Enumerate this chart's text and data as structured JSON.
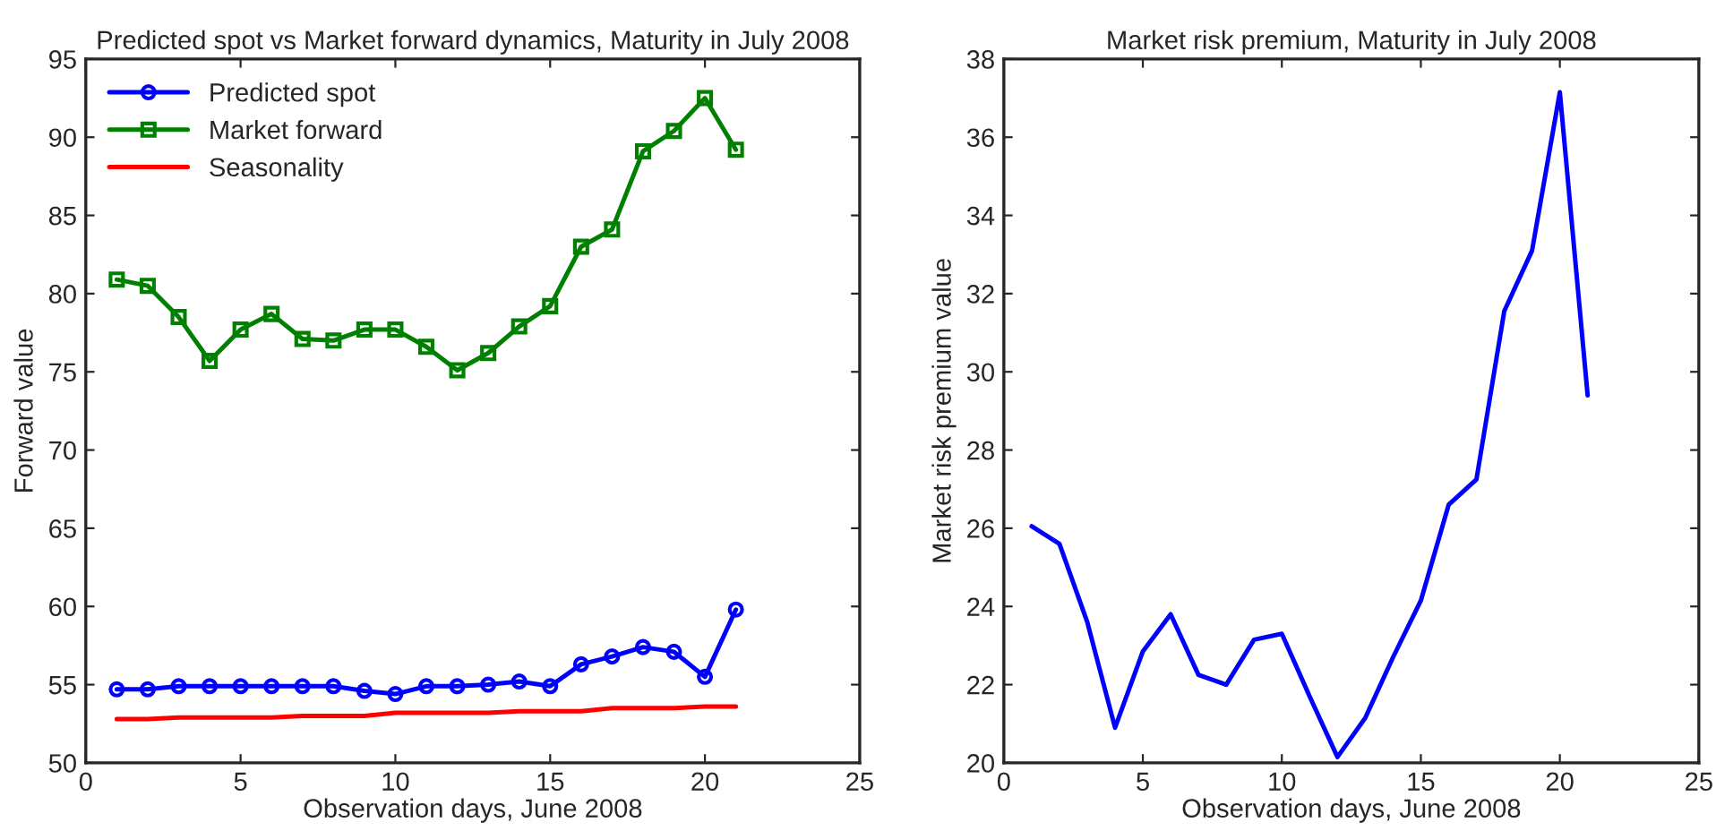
{
  "chart_data": [
    {
      "type": "line",
      "title": "Predicted spot vs Market forward dynamics, Maturity in July 2008",
      "xlabel": "Observation days, June 2008",
      "ylabel": "Forward value",
      "x": [
        1,
        2,
        3,
        4,
        5,
        6,
        7,
        8,
        9,
        10,
        11,
        12,
        13,
        14,
        15,
        16,
        17,
        18,
        19,
        20,
        21
      ],
      "series": [
        {
          "name": "Predicted spot",
          "color": "#0000ff",
          "marker": "circle",
          "values": [
            54.7,
            54.7,
            54.9,
            54.9,
            54.9,
            54.9,
            54.9,
            54.9,
            54.6,
            54.4,
            54.9,
            54.9,
            55.0,
            55.2,
            54.9,
            56.3,
            56.8,
            57.4,
            57.1,
            55.5,
            59.8
          ]
        },
        {
          "name": "Market forward",
          "color": "#008000",
          "marker": "square",
          "values": [
            80.9,
            80.5,
            78.5,
            75.7,
            77.7,
            78.7,
            77.1,
            77.0,
            77.7,
            77.7,
            76.6,
            75.1,
            76.2,
            77.9,
            79.2,
            83.0,
            84.1,
            89.1,
            90.4,
            92.5,
            89.2
          ]
        },
        {
          "name": "Seasonality",
          "color": "#ff0000",
          "marker": "none",
          "values": [
            52.8,
            52.8,
            52.9,
            52.9,
            52.9,
            52.9,
            53.0,
            53.0,
            53.0,
            53.2,
            53.2,
            53.2,
            53.2,
            53.3,
            53.3,
            53.3,
            53.5,
            53.5,
            53.5,
            53.6,
            53.6
          ]
        }
      ],
      "xlim": [
        0,
        25
      ],
      "xticks": [
        0,
        5,
        10,
        15,
        20,
        25
      ],
      "ylim": [
        50,
        95
      ],
      "yticks": [
        50,
        55,
        60,
        65,
        70,
        75,
        80,
        85,
        90,
        95
      ],
      "legend": "top left",
      "grid": false
    },
    {
      "type": "line",
      "title": "Market risk premium, Maturity in July 2008",
      "xlabel": "Observation days, June 2008",
      "ylabel": "Market risk premium value",
      "x": [
        1,
        2,
        3,
        4,
        5,
        6,
        7,
        8,
        9,
        10,
        11,
        12,
        13,
        14,
        15,
        16,
        17,
        18,
        19,
        20,
        21
      ],
      "series": [
        {
          "color": "#0000ff",
          "values": [
            26.05,
            25.6,
            23.6,
            20.9,
            22.85,
            23.8,
            22.25,
            22.0,
            23.15,
            23.3,
            21.7,
            20.15,
            21.15,
            22.7,
            24.15,
            26.6,
            27.25,
            31.55,
            33.1,
            37.15,
            29.4
          ]
        }
      ],
      "xlim": [
        0,
        25
      ],
      "xticks": [
        0,
        5,
        10,
        15,
        20,
        25
      ],
      "ylim": [
        20,
        38
      ],
      "yticks": [
        20,
        22,
        24,
        26,
        28,
        30,
        32,
        34,
        36,
        38
      ],
      "grid": false
    }
  ]
}
